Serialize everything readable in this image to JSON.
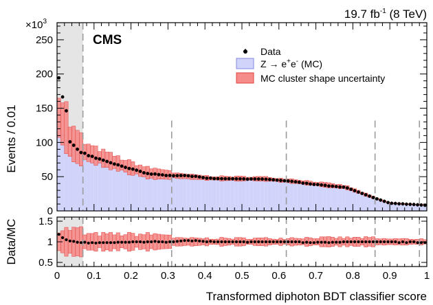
{
  "chart_data": {
    "type": "histogram-with-ratio",
    "lumi_label": "19.7 fb",
    "lumi_exp": "-1",
    "lumi_energy": " (8 TeV)",
    "experiment_label": "CMS",
    "xlabel": "Transformed diphoton BDT classifier score",
    "ylabel": "Events / 0.01",
    "ratio_ylabel": "Data/MC",
    "y_multiplier_base": "×10",
    "y_multiplier_exp": "3",
    "xlim": [
      0,
      1
    ],
    "ylim": [
      0,
      275
    ],
    "ratio_ylim": [
      0.4,
      1.6
    ],
    "x_ticks": [
      "0",
      "0.1",
      "0.2",
      "0.3",
      "0.4",
      "0.5",
      "0.6",
      "0.7",
      "0.8",
      "0.9",
      "1"
    ],
    "y_ticks": [
      "0",
      "50",
      "100",
      "150",
      "200",
      "250"
    ],
    "ratio_ticks": [
      "0.5",
      "1",
      "1.5"
    ],
    "excluded_region": [
      0,
      0.07
    ],
    "category_boundaries": [
      0.07,
      0.31,
      0.62,
      0.86,
      0.98
    ],
    "legend": {
      "data": "Data",
      "mc_prefix": "Z → e",
      "mc_sup1": "+",
      "mc_mid": "e",
      "mc_sup2": "-",
      "mc_suffix": " (MC)",
      "unc": "MC cluster shape uncertainty"
    },
    "colors": {
      "mc_fill": "#d0d4fb",
      "mc_line": "#8488e0",
      "unc_fill": "#f58c8a",
      "unc_line": "#e0403c",
      "excluded": "#b4b4b4",
      "boundary": "#9a9a9a",
      "data": "#000000"
    },
    "ratio_points": [
      1.18,
      1.12,
      1.1,
      1.07,
      1.05,
      1.04,
      1.02,
      1.01,
      1.01,
      1.0,
      0.99,
      0.98,
      0.98,
      0.98,
      0.99,
      0.98,
      0.97,
      0.98,
      0.98,
      0.97,
      0.98,
      0.98,
      0.97,
      0.98,
      0.98,
      0.98,
      0.97,
      0.98,
      0.98,
      0.98,
      0.98,
      0.99,
      0.98,
      0.99,
      0.99,
      0.99,
      1.0,
      0.99,
      1.0,
      1.0,
      1.0,
      1.0,
      0.99,
      1.0,
      1.0,
      0.99,
      1.0,
      1.0,
      1.01,
      1.0,
      1.01,
      1.01,
      1.0,
      1.0,
      1.01,
      1.0,
      1.0,
      0.99,
      1.0,
      1.0,
      1.0,
      1.0,
      1.01,
      1.02,
      1.02,
      1.03,
      1.03,
      1.03,
      1.03,
      1.02,
      1.02,
      1.02,
      1.03,
      1.02,
      1.02,
      1.01,
      1.01,
      1.0,
      1.0,
      1.0,
      1.01,
      1.0,
      1.0,
      1.0,
      1.0,
      1.0,
      1.0,
      1.0,
      1.0,
      1.0,
      1.0,
      1.0,
      1.0,
      1.0,
      1.0,
      1.0,
      1.0,
      1.0,
      1.0,
      0.99,
      1.0,
      1.0,
      1.0,
      1.0,
      1.0,
      1.0,
      1.0,
      1.0,
      1.0,
      1.0,
      1.0,
      1.0,
      1.0,
      1.0,
      1.0,
      1.0,
      1.0,
      1.0,
      1.0,
      1.0,
      1.0,
      1.0,
      1.0,
      1.0,
      1.0,
      1.0,
      1.0,
      1.0,
      0.99,
      0.98,
      0.99,
      0.99,
      0.98,
      0.98,
      0.99,
      0.98,
      0.99,
      0.98,
      0.99,
      0.98,
      0.99,
      0.99,
      0.98,
      0.98,
      0.99,
      0.98,
      0.99,
      0.98,
      0.99,
      1.0,
      1.0,
      1.0,
      1.0,
      1.0,
      1.0,
      1.0,
      1.0,
      1.0,
      1.0,
      1.0,
      1.0,
      1.0,
      1.0,
      1.0,
      1.0,
      1.0,
      1.0,
      1.0,
      1.0,
      1.0,
      1.0,
      1.0,
      1.0,
      1.0,
      1.0,
      1.0,
      1.0,
      1.0,
      1.0,
      0.98,
      1.0,
      1.0,
      1.0,
      0.98,
      0.99,
      1.0,
      1.0,
      1.0,
      0.98,
      0.98,
      0.98,
      0.98,
      0.98,
      0.98
    ]
  }
}
